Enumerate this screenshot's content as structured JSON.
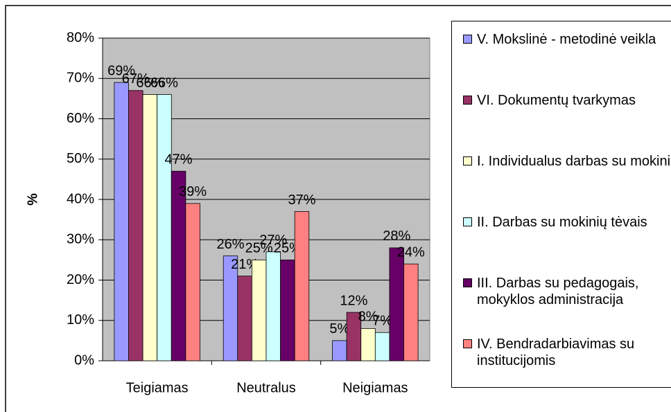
{
  "chart_data": {
    "type": "bar",
    "categories": [
      "Teigiamas",
      "Neutralus",
      "Neigiamas"
    ],
    "y_label": "%",
    "ylim": [
      0,
      80
    ],
    "yticks": [
      {
        "value": 0,
        "label": "0%"
      },
      {
        "value": 10,
        "label": "10%"
      },
      {
        "value": 20,
        "label": "20%"
      },
      {
        "value": 30,
        "label": "30%"
      },
      {
        "value": 40,
        "label": "40%"
      },
      {
        "value": 50,
        "label": "50%"
      },
      {
        "value": 60,
        "label": "60%"
      },
      {
        "value": 70,
        "label": "70%"
      },
      {
        "value": 80,
        "label": "80%"
      }
    ],
    "grid": true,
    "legend": "right",
    "series": [
      {
        "name": "V. Mokslinė - metodinė veikla",
        "color": "#9999ff",
        "values": [
          69,
          26,
          5
        ],
        "value_labels": [
          "69%",
          "26%",
          "5%"
        ]
      },
      {
        "name": "VI. Dokumentų tvarkymas",
        "color": "#993366",
        "values": [
          67,
          21,
          12
        ],
        "value_labels": [
          "67%",
          "21%",
          "12%"
        ]
      },
      {
        "name": "I. Individualus darbas su mokiniu",
        "color": "#ffffcc",
        "values": [
          66,
          25,
          8
        ],
        "value_labels": [
          "66%",
          "25%",
          "8%"
        ]
      },
      {
        "name": "II. Darbas su mokinių tėvais",
        "color": "#ccffff",
        "values": [
          66,
          27,
          7
        ],
        "value_labels": [
          "66%",
          "27%",
          "7%"
        ]
      },
      {
        "name": "III. Darbas su pedagogais, mokyklos administracija",
        "color": "#660066",
        "values": [
          47,
          25,
          28
        ],
        "value_labels": [
          "47%",
          "25%",
          "28%"
        ]
      },
      {
        "name": "IV. Bendradarbiavimas su institucijomis",
        "color": "#ff8080",
        "values": [
          39,
          37,
          24
        ],
        "value_labels": [
          "39%",
          "37%",
          "24%"
        ]
      }
    ]
  }
}
